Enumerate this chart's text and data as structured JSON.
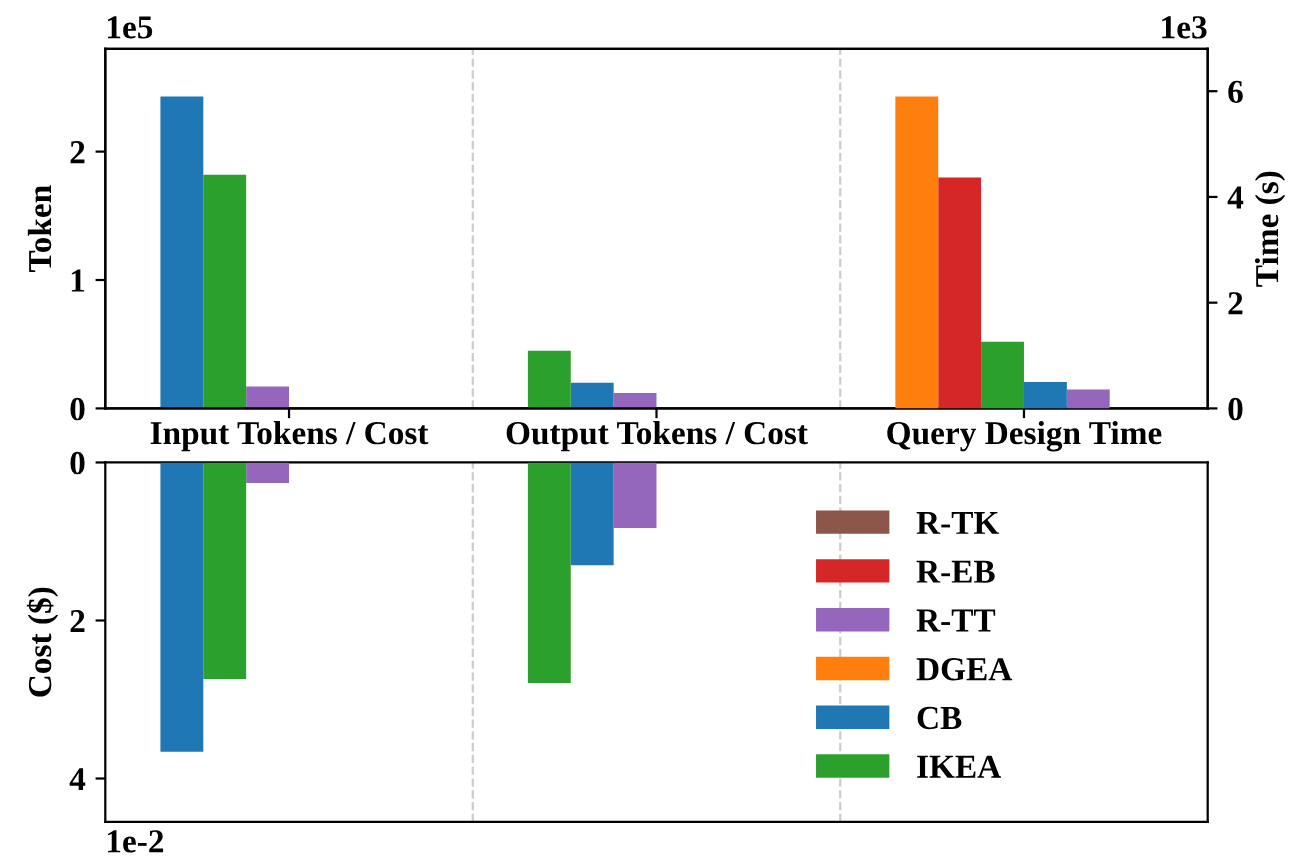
{
  "chart_data": [
    {
      "type": "bar",
      "categories": [
        "Input Tokens / Cost",
        "Output Tokens / Cost",
        "Query Design Time"
      ],
      "ylabel": "Token",
      "y2label": "Time (s)",
      "ylim": [
        0,
        2.8
      ],
      "yticks": [
        0,
        1,
        2
      ],
      "y2lim": [
        0,
        6.8
      ],
      "y2ticks": [
        0,
        2,
        4,
        6
      ],
      "annotations": [
        "1e5",
        "1e3"
      ],
      "grid": false,
      "legend": false,
      "series": [
        {
          "color": "#8c564b",
          "values": [
            0,
            0,
            null
          ]
        },
        {
          "color": "#d62728",
          "values": [
            0,
            0,
            null
          ]
        },
        {
          "color": "#9467bd",
          "values": [
            0.17,
            0.12,
            null
          ]
        },
        {
          "color": "#ff7f0e",
          "values": [
            0,
            0,
            null
          ]
        },
        {
          "color": "#1f77b4",
          "values": [
            2.43,
            0.2,
            null
          ]
        },
        {
          "color": "#2ca02c",
          "values": [
            1.82,
            0.45,
            null
          ]
        },
        {
          "color": "#8c564b",
          "axis": "y2",
          "values": [
            null,
            null,
            0
          ]
        },
        {
          "color": "#d62728",
          "axis": "y2",
          "values": [
            null,
            null,
            4.37
          ]
        },
        {
          "color": "#9467bd",
          "axis": "y2",
          "values": [
            null,
            null,
            0.36
          ]
        },
        {
          "color": "#ff7f0e",
          "axis": "y2",
          "values": [
            null,
            null,
            5.9
          ]
        },
        {
          "color": "#1f77b4",
          "axis": "y2",
          "values": [
            null,
            null,
            0.5
          ]
        },
        {
          "color": "#2ca02c",
          "axis": "y2",
          "values": [
            null,
            null,
            1.26
          ]
        }
      ]
    },
    {
      "type": "bar",
      "categories": [
        null,
        null,
        null
      ],
      "ylabel": "Cost ($)",
      "ylim": [
        4.55,
        0
      ],
      "yticks": [
        0,
        2,
        4
      ],
      "annotations": [
        "1e-2"
      ],
      "tick_labels": "y",
      "grid": false,
      "legend": "bottom right",
      "series": [
        {
          "name": "R-TK",
          "color": "#8c564b",
          "values": [
            0,
            0,
            null
          ]
        },
        {
          "name": "R-EB",
          "color": "#d62728",
          "values": [
            0,
            0,
            null
          ]
        },
        {
          "name": "R-TT",
          "color": "#9467bd",
          "values": [
            0.26,
            0.83,
            null
          ]
        },
        {
          "name": "DGEA",
          "color": "#ff7f0e",
          "values": [
            0,
            0,
            null
          ]
        },
        {
          "name": "CB",
          "color": "#1f77b4",
          "values": [
            3.66,
            1.3,
            null
          ]
        },
        {
          "name": "IKEA",
          "color": "#2ca02c",
          "values": [
            2.74,
            2.79,
            null
          ]
        }
      ]
    }
  ]
}
